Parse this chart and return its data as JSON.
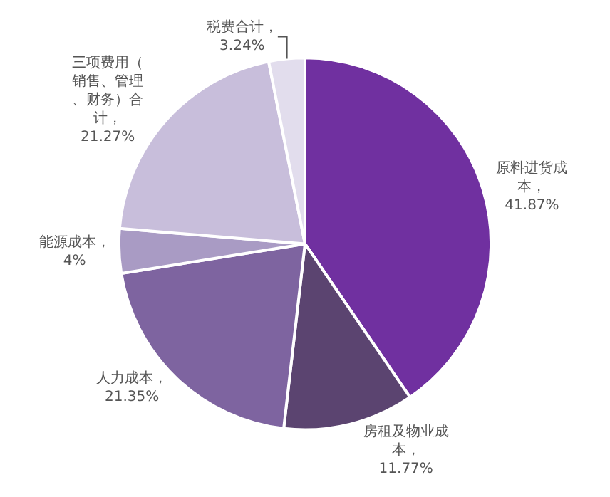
{
  "chart_data": {
    "type": "pie",
    "categories": [
      "原料进货成本",
      "房租及物业成本",
      "人力成本",
      "能源成本",
      "三项费用（销售、管理、财务）合计",
      "税费合计"
    ],
    "values": [
      41.87,
      11.77,
      21.35,
      4,
      21.27,
      3.24
    ],
    "value_labels": [
      "，41.87%",
      "，11.77%",
      "，21.35%",
      "，4%",
      "，21.27%",
      "，3.24%"
    ],
    "colors": [
      "#7030a0",
      "#5b4470",
      "#7e64a0",
      "#a99bc4",
      "#c8bedb",
      "#e2dded"
    ],
    "legend": false
  }
}
